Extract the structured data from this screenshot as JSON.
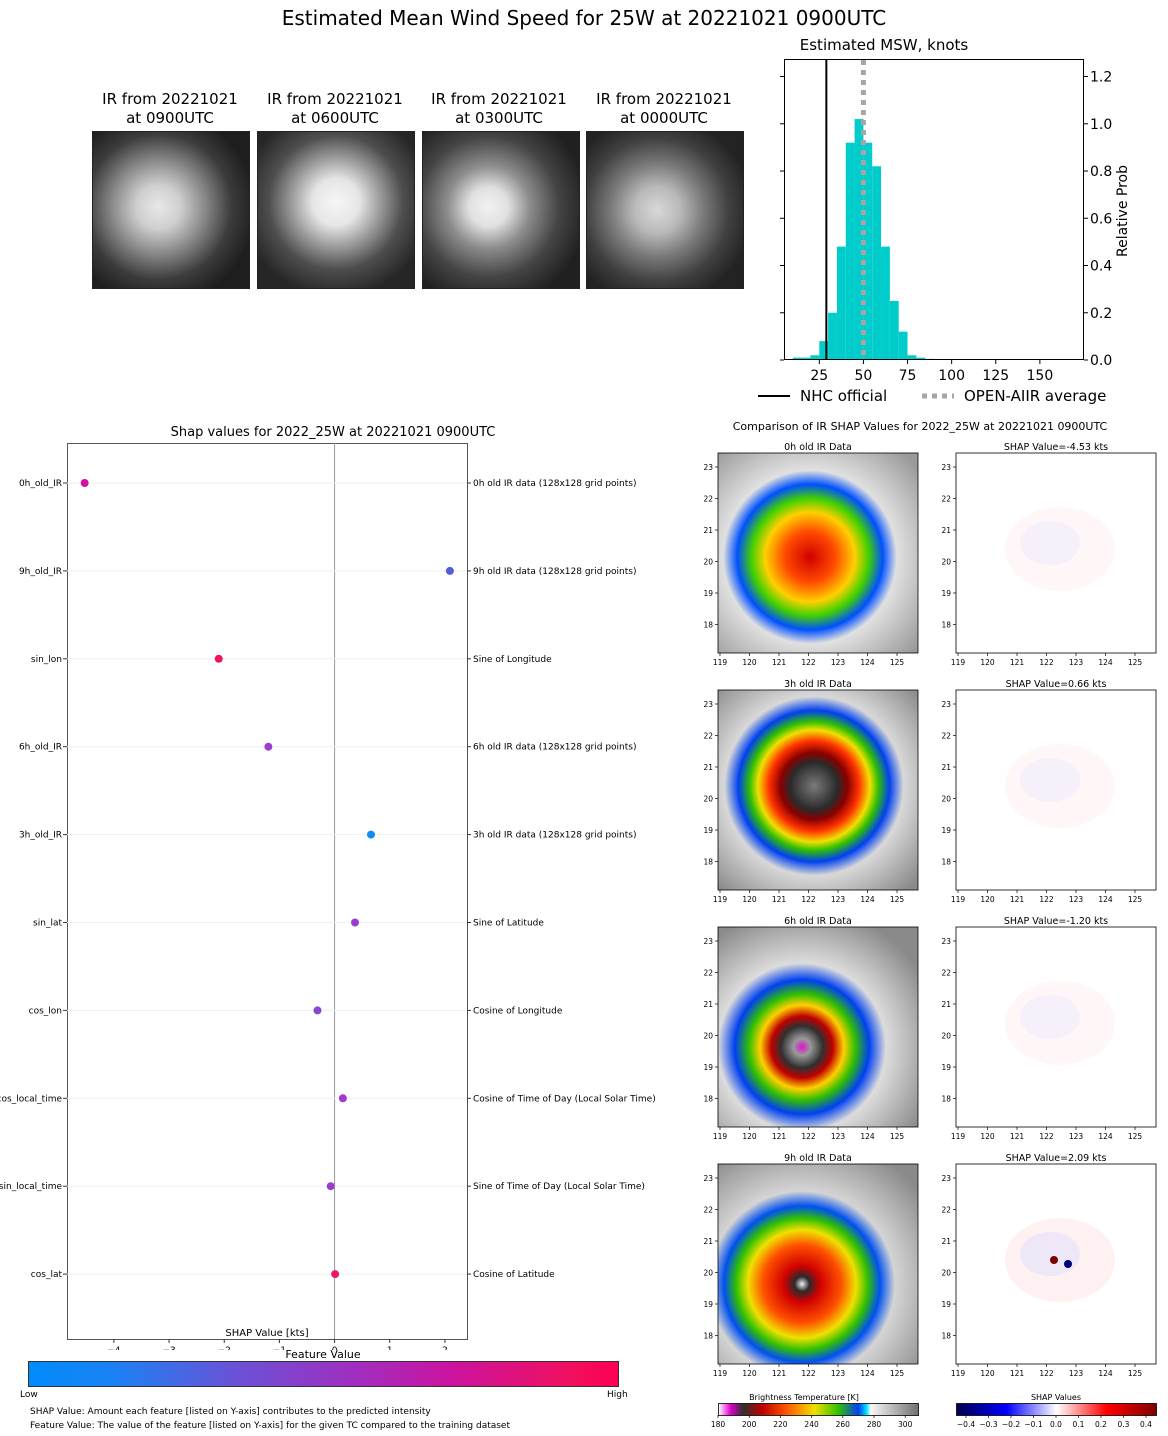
{
  "main_title": "Estimated Mean Wind Speed for 25W at 20221021 0900UTC",
  "ir_thumbs": [
    {
      "line1": "IR from 20221021",
      "line2": "at 0900UTC"
    },
    {
      "line1": "IR from 20221021",
      "line2": "at 0600UTC"
    },
    {
      "line1": "IR from 20221021",
      "line2": "at 0300UTC"
    },
    {
      "line1": "IR from 20221021",
      "line2": "at 0000UTC"
    }
  ],
  "hist": {
    "title": "Estimated MSW, knots",
    "ylabel": "Relative Prob",
    "legend_nhc": "NHC official",
    "legend_avg": "OPEN-AIIR average",
    "bar_color": "#00cccc"
  },
  "shap": {
    "title": "Shap values for 2022_25W at 20221021 0900UTC",
    "xlabel": "SHAP Value [kts]",
    "colorbar_title": "Feature Value",
    "colorbar_low": "Low",
    "colorbar_high": "High",
    "note1": "SHAP Value: Amount each feature [listed on Y-axis] contributes to the predicted intensity",
    "note2": "Feature Value: The value of the feature [listed on Y-axis] for the given TC compared to the training dataset"
  },
  "compare": {
    "title": "Comparison of IR SHAP Values for 2022_25W at 20221021 0900UTC",
    "rows": [
      {
        "left": "0h old IR Data",
        "right": "SHAP Value=-4.53 kts"
      },
      {
        "left": "3h old IR Data",
        "right": "SHAP Value=0.66 kts"
      },
      {
        "left": "6h old IR Data",
        "right": "SHAP Value=-1.20 kts"
      },
      {
        "left": "9h old IR Data",
        "right": "SHAP Value=2.09 kts"
      }
    ],
    "yticks": [
      "23",
      "22",
      "21",
      "20",
      "19",
      "18"
    ],
    "xticks": [
      "119",
      "120",
      "121",
      "122",
      "123",
      "124",
      "125"
    ],
    "bt_title": "Brightness Temperature [K]",
    "bt_ticks": [
      "180",
      "200",
      "220",
      "240",
      "260",
      "280",
      "300"
    ],
    "sv_title": "SHAP Values",
    "sv_ticks": [
      "−0.4",
      "−0.3",
      "−0.2",
      "−0.1",
      "0.0",
      "0.1",
      "0.2",
      "0.3",
      "0.4"
    ]
  },
  "chart_data": [
    {
      "type": "bar",
      "title": "Estimated MSW, knots",
      "ylabel": "Relative Prob",
      "x": [
        12.5,
        17.5,
        22.5,
        27.5,
        32.5,
        37.5,
        42.5,
        47.5,
        52.5,
        57.5,
        62.5,
        67.5,
        72.5,
        77.5,
        82.5,
        87.5,
        92.5,
        97.5,
        102.5,
        107.5,
        112.5,
        117.5,
        122.5,
        127.5,
        132.5,
        137.5,
        142.5,
        147.5,
        152.5,
        157.5,
        162.5,
        167.5
      ],
      "values": [
        0.01,
        0.01,
        0.02,
        0.08,
        0.2,
        0.48,
        0.92,
        1.02,
        0.92,
        0.82,
        0.48,
        0.25,
        0.12,
        0.02,
        0.01,
        0.005,
        0.004,
        0.003,
        0.003,
        0.003,
        0.003,
        0.003,
        0.003,
        0.003,
        0.003,
        0.003,
        0.003,
        0.003,
        0.003,
        0.003,
        0.003,
        0.003
      ],
      "xticks": [
        25,
        50,
        75,
        100,
        125,
        150
      ],
      "yticks": [
        0.0,
        0.2,
        0.4,
        0.6,
        0.8,
        1.0,
        1.2
      ],
      "xlim": [
        5,
        175
      ],
      "ylim": [
        0,
        1.27
      ],
      "nhc_official": 29,
      "open_aiir_average": 50
    },
    {
      "type": "scatter",
      "title": "Shap values for 2022_25W at 20221021 0900UTC",
      "xlabel": "SHAP Value [kts]",
      "xlim": [
        -4.85,
        2.4
      ],
      "xticks": [
        -4,
        -3,
        -2,
        -1,
        0,
        1,
        2
      ],
      "points": [
        {
          "feature": "0h_old_IR",
          "desc": "0h old IR data (128x128 grid points)",
          "shap": -4.53,
          "color": "#d10fa0"
        },
        {
          "feature": "9h_old_IR",
          "desc": "9h old IR data (128x128 grid points)",
          "shap": 2.09,
          "color": "#4f5fdc"
        },
        {
          "feature": "sin_lon",
          "desc": "Sine of Longitude",
          "shap": -2.1,
          "color": "#f0135f"
        },
        {
          "feature": "6h_old_IR",
          "desc": "6h old IR data (128x128 grid points)",
          "shap": -1.2,
          "color": "#9a3ed0"
        },
        {
          "feature": "3h_old_IR",
          "desc": "3h old IR data (128x128 grid points)",
          "shap": 0.66,
          "color": "#118cf5"
        },
        {
          "feature": "sin_lat",
          "desc": "Sine of Latitude",
          "shap": 0.37,
          "color": "#9a3ecf"
        },
        {
          "feature": "cos_lon",
          "desc": "Cosine of Longitude",
          "shap": -0.31,
          "color": "#8a45d5"
        },
        {
          "feature": "cos_local_time",
          "desc": "Cosine of Time of Day (Local Solar Time)",
          "shap": 0.15,
          "color": "#9f3acb"
        },
        {
          "feature": "sin_local_time",
          "desc": "Sine of Time of Day (Local Solar Time)",
          "shap": -0.07,
          "color": "#9a3ecf"
        },
        {
          "feature": "cos_lat",
          "desc": "Cosine of Latitude",
          "shap": 0.01,
          "color": "#ee1468"
        }
      ]
    }
  ]
}
